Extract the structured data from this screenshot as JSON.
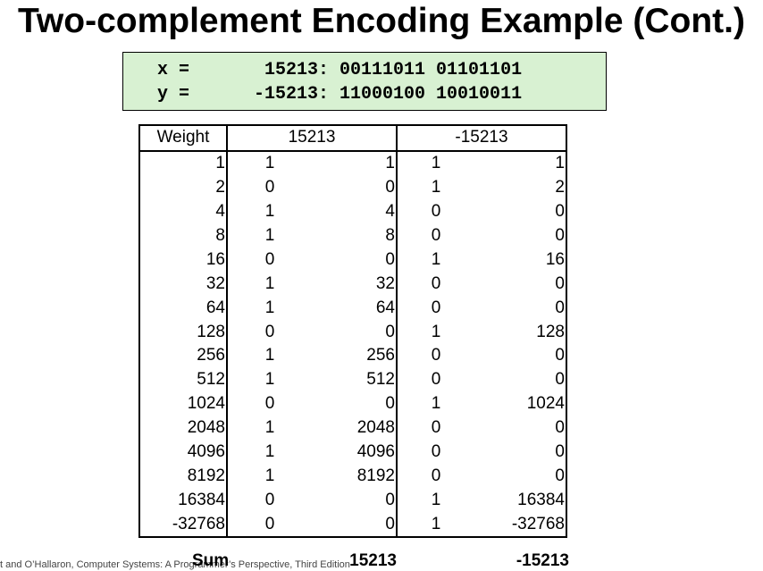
{
  "title": "Two-complement Encoding Example (Cont.)",
  "code": {
    "lines": [
      "x =       15213: 00111011 01101101",
      "y =      -15213: 11000100 10010011"
    ]
  },
  "table": {
    "header": [
      "Weight",
      "15213",
      "-15213"
    ],
    "rows": [
      [
        1,
        1,
        1,
        1,
        1
      ],
      [
        2,
        0,
        0,
        1,
        2
      ],
      [
        4,
        1,
        4,
        0,
        0
      ],
      [
        8,
        1,
        8,
        0,
        0
      ],
      [
        16,
        0,
        0,
        1,
        16
      ],
      [
        32,
        1,
        32,
        0,
        0
      ],
      [
        64,
        1,
        64,
        0,
        0
      ],
      [
        128,
        0,
        0,
        1,
        128
      ],
      [
        256,
        1,
        256,
        0,
        0
      ],
      [
        512,
        1,
        512,
        0,
        0
      ],
      [
        1024,
        0,
        0,
        1,
        1024
      ],
      [
        2048,
        1,
        2048,
        0,
        0
      ],
      [
        4096,
        1,
        4096,
        0,
        0
      ],
      [
        8192,
        1,
        8192,
        0,
        0
      ],
      [
        16384,
        0,
        0,
        1,
        16384
      ],
      [
        -32768,
        0,
        0,
        1,
        -32768
      ]
    ],
    "sum": [
      "Sum",
      15213,
      -15213
    ]
  },
  "footnote": "t and O’Hallaron, Computer Systems: A Programmer’s Perspective, Third Edition"
}
